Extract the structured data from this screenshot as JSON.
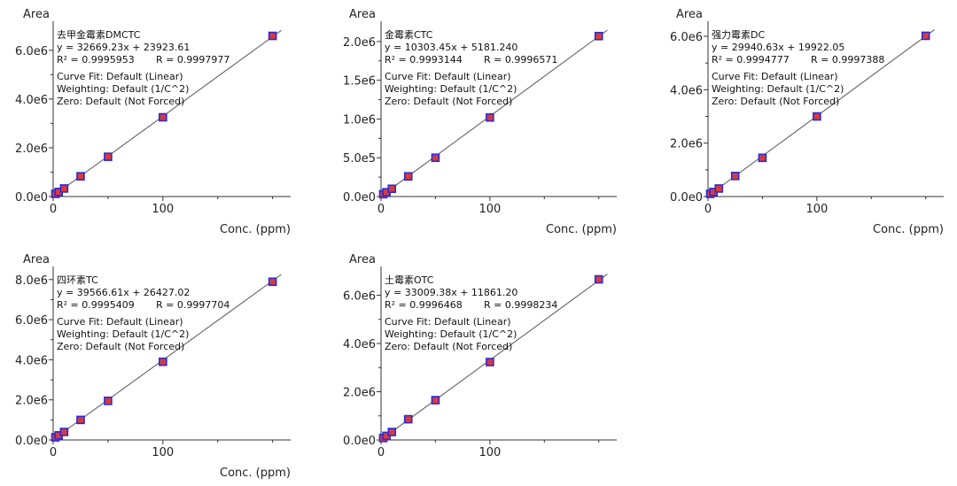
{
  "chart_data": [
    {
      "type": "scatter",
      "compound": "去甲金霉素DMCTC",
      "ylabel": "Area",
      "xlabel": "Conc. (ppm)",
      "xticks": [
        0,
        100
      ],
      "yticks": [
        "0.0e0",
        "2.0e6",
        "4.0e6",
        "6.0e6"
      ],
      "ytick_values": [
        0,
        2000000,
        4000000,
        6000000
      ],
      "xlim": [
        0,
        210
      ],
      "ylim": [
        0,
        6900000
      ],
      "equation": "y = 32669.23x + 23923.61",
      "slope": 32669.23,
      "intercept": 23923.61,
      "r2_text": "R² = 0.9995953",
      "r_text": "R = 0.9997977",
      "curve_fit": "Curve Fit: Default (Linear)",
      "weighting": "Weighting: Default (1/C^2)",
      "zero": "Zero: Default (Not Forced)",
      "x": [
        2,
        5,
        10,
        25,
        50,
        100,
        200
      ],
      "y": [
        110000,
        190000,
        330000,
        830000,
        1630000,
        3250000,
        6590000
      ]
    },
    {
      "type": "scatter",
      "compound": "金霉素CTC",
      "ylabel": "Area",
      "xlabel": "Conc. (ppm)",
      "xticks": [
        0,
        100
      ],
      "yticks": [
        "0.0e0",
        "5.0e5",
        "1.0e6",
        "1.5e6",
        "2.0e6"
      ],
      "ytick_values": [
        0,
        500000,
        1000000,
        1500000,
        2000000
      ],
      "xlim": [
        0,
        210
      ],
      "ylim": [
        0,
        2170000
      ],
      "equation": "y = 10303.45x + 5181.240",
      "slope": 10303.45,
      "intercept": 5181.24,
      "r2_text": "R² = 0.9993144",
      "r_text": "R = 0.9996571",
      "curve_fit": "Curve Fit: Default (Linear)",
      "weighting": "Weighting: Default (1/C^2)",
      "zero": "Zero: Default (Not Forced)",
      "x": [
        2,
        5,
        10,
        25,
        50,
        100,
        200
      ],
      "y": [
        30000,
        55000,
        100000,
        260000,
        500000,
        1020000,
        2070000
      ]
    },
    {
      "type": "scatter",
      "compound": "强力霉素DC",
      "ylabel": "Area",
      "xlabel": "Conc. (ppm)",
      "xticks": [
        0,
        100
      ],
      "yticks": [
        "0.0e0",
        "2.0e6",
        "4.0e6",
        "6.0e6"
      ],
      "ytick_values": [
        0,
        2000000,
        4000000,
        6000000
      ],
      "xlim": [
        0,
        210
      ],
      "ylim": [
        0,
        6300000
      ],
      "equation": "y = 29940.63x + 19922.05",
      "slope": 29940.63,
      "intercept": 19922.05,
      "r2_text": "R² = 0.9994777",
      "r_text": "R = 0.9997388",
      "curve_fit": "Curve Fit: Default (Linear)",
      "weighting": "Weighting: Default (1/C^2)",
      "zero": "Zero: Default (Not Forced)",
      "x": [
        2,
        5,
        10,
        25,
        50,
        100,
        200
      ],
      "y": [
        100000,
        170000,
        300000,
        770000,
        1450000,
        3000000,
        6020000
      ]
    },
    {
      "type": "scatter",
      "compound": "四环素TC",
      "ylabel": "Area",
      "xlabel": "Conc. (ppm)",
      "xticks": [
        0,
        100
      ],
      "yticks": [
        "0.0e0",
        "2.0e6",
        "4.0e6",
        "6.0e6",
        "8.0e6"
      ],
      "ytick_values": [
        0,
        2000000,
        4000000,
        6000000,
        8000000
      ],
      "xlim": [
        0,
        210
      ],
      "ylim": [
        0,
        8300000
      ],
      "equation": "y = 39566.61x + 26427.02",
      "slope": 39566.61,
      "intercept": 26427.02,
      "r2_text": "R² = 0.9995409",
      "r_text": "R = 0.9997704",
      "curve_fit": "Curve Fit: Default (Linear)",
      "weighting": "Weighting: Default (1/C^2)",
      "zero": "Zero: Default (Not Forced)",
      "x": [
        2,
        5,
        10,
        25,
        50,
        100,
        200
      ],
      "y": [
        130000,
        230000,
        400000,
        1000000,
        1950000,
        3900000,
        7890000
      ]
    },
    {
      "type": "scatter",
      "compound": "土霉素OTC",
      "ylabel": "Area",
      "xlabel": "",
      "xticks": [
        0,
        100
      ],
      "yticks": [
        "0.0e0",
        "2.0e6",
        "4.0e6",
        "6.0e6"
      ],
      "ytick_values": [
        0,
        2000000,
        4000000,
        6000000
      ],
      "xlim": [
        0,
        210
      ],
      "ylim": [
        0,
        6900000
      ],
      "equation": "y = 33009.38x + 11861.20",
      "slope": 33009.38,
      "intercept": 11861.2,
      "r2_text": "R² = 0.9996468",
      "r_text": "R = 0.9998234",
      "curve_fit": "Curve Fit: Default (Linear)",
      "weighting": "Weighting: Default (1/C^2)",
      "zero": "Zero: Default (Not Forced)",
      "x": [
        2,
        5,
        10,
        25,
        50,
        100,
        200
      ],
      "y": [
        80000,
        170000,
        330000,
        860000,
        1650000,
        3230000,
        6660000
      ]
    }
  ],
  "colors": {
    "marker_fill": "#d83a3a",
    "marker_edge": "#2a2ad8",
    "fit_line": "#555555",
    "axis": "#333333"
  }
}
